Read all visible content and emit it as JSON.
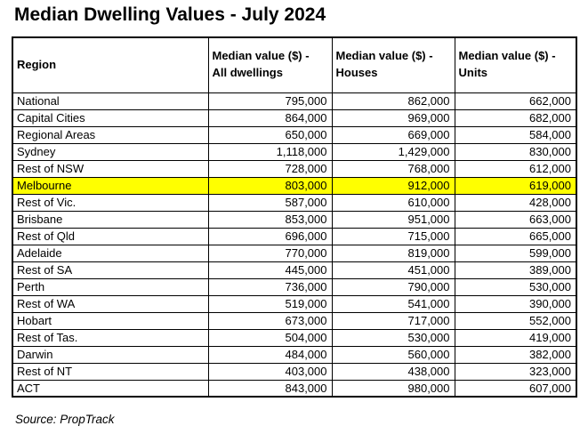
{
  "title": "Median Dwelling Values - July 2024",
  "source": "Source: PropTrack",
  "highlight_color": "#FFFF00",
  "table": {
    "columns": [
      "Region",
      "Median value ($) -\nAll dwellings",
      "Median value ($) -\nHouses",
      "Median value ($) -\nUnits"
    ],
    "rows": [
      {
        "region": "National",
        "values": [
          "795,000",
          "862,000",
          "662,000"
        ],
        "highlighted": false
      },
      {
        "region": "Capital Cities",
        "values": [
          "864,000",
          "969,000",
          "682,000"
        ],
        "highlighted": false
      },
      {
        "region": "Regional Areas",
        "values": [
          "650,000",
          "669,000",
          "584,000"
        ],
        "highlighted": false
      },
      {
        "region": "Sydney",
        "values": [
          "1,118,000",
          "1,429,000",
          "830,000"
        ],
        "highlighted": false
      },
      {
        "region": "Rest of NSW",
        "values": [
          "728,000",
          "768,000",
          "612,000"
        ],
        "highlighted": false
      },
      {
        "region": "Melbourne",
        "values": [
          "803,000",
          "912,000",
          "619,000"
        ],
        "highlighted": true
      },
      {
        "region": "Rest of Vic.",
        "values": [
          "587,000",
          "610,000",
          "428,000"
        ],
        "highlighted": false
      },
      {
        "region": "Brisbane",
        "values": [
          "853,000",
          "951,000",
          "663,000"
        ],
        "highlighted": false
      },
      {
        "region": "Rest of Qld",
        "values": [
          "696,000",
          "715,000",
          "665,000"
        ],
        "highlighted": false
      },
      {
        "region": "Adelaide",
        "values": [
          "770,000",
          "819,000",
          "599,000"
        ],
        "highlighted": false
      },
      {
        "region": "Rest of SA",
        "values": [
          "445,000",
          "451,000",
          "389,000"
        ],
        "highlighted": false
      },
      {
        "region": "Perth",
        "values": [
          "736,000",
          "790,000",
          "530,000"
        ],
        "highlighted": false
      },
      {
        "region": "Rest of WA",
        "values": [
          "519,000",
          "541,000",
          "390,000"
        ],
        "highlighted": false
      },
      {
        "region": "Hobart",
        "values": [
          "673,000",
          "717,000",
          "552,000"
        ],
        "highlighted": false
      },
      {
        "region": "Rest of Tas.",
        "values": [
          "504,000",
          "530,000",
          "419,000"
        ],
        "highlighted": false
      },
      {
        "region": "Darwin",
        "values": [
          "484,000",
          "560,000",
          "382,000"
        ],
        "highlighted": false
      },
      {
        "region": "Rest of NT",
        "values": [
          "403,000",
          "438,000",
          "323,000"
        ],
        "highlighted": false
      },
      {
        "region": "ACT",
        "values": [
          "843,000",
          "980,000",
          "607,000"
        ],
        "highlighted": false
      }
    ]
  },
  "chart_data": {
    "type": "table",
    "title": "Median Dwelling Values - July 2024",
    "columns": [
      "Region",
      "Median value ($) - All dwellings",
      "Median value ($) - Houses",
      "Median value ($) - Units"
    ],
    "categories": [
      "National",
      "Capital Cities",
      "Regional Areas",
      "Sydney",
      "Rest of NSW",
      "Melbourne",
      "Rest of Vic.",
      "Brisbane",
      "Rest of Qld",
      "Adelaide",
      "Rest of SA",
      "Perth",
      "Rest of WA",
      "Hobart",
      "Rest of Tas.",
      "Darwin",
      "Rest of NT",
      "ACT"
    ],
    "series": [
      {
        "name": "All dwellings",
        "values": [
          795000,
          864000,
          650000,
          1118000,
          728000,
          803000,
          587000,
          853000,
          696000,
          770000,
          445000,
          736000,
          519000,
          673000,
          504000,
          484000,
          403000,
          843000
        ]
      },
      {
        "name": "Houses",
        "values": [
          862000,
          969000,
          669000,
          1429000,
          768000,
          912000,
          610000,
          951000,
          715000,
          819000,
          451000,
          790000,
          541000,
          717000,
          530000,
          560000,
          438000,
          980000
        ]
      },
      {
        "name": "Units",
        "values": [
          662000,
          682000,
          584000,
          830000,
          612000,
          619000,
          428000,
          663000,
          665000,
          599000,
          389000,
          530000,
          390000,
          552000,
          419000,
          382000,
          323000,
          607000
        ]
      }
    ],
    "highlighted_row": "Melbourne",
    "source": "Source: PropTrack"
  }
}
